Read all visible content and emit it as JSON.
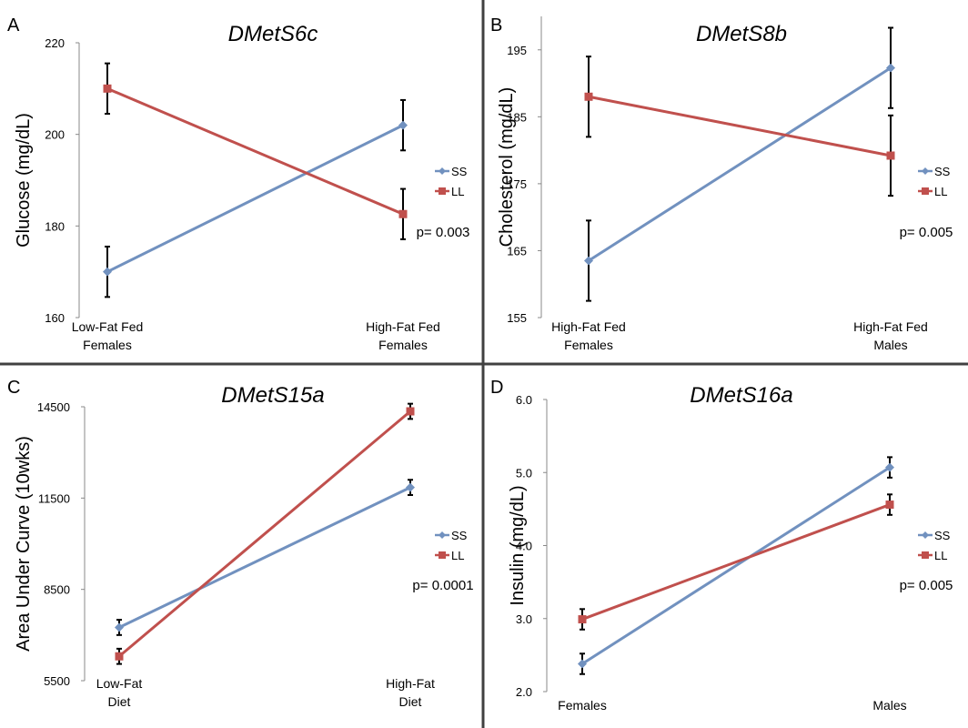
{
  "chart_data": [
    {
      "type": "line",
      "panel": "A",
      "title": "DMetS6c",
      "xlabel": "",
      "ylabel": "Glucose (mg/dL)",
      "ylim": [
        160,
        220
      ],
      "yticks": [
        "160",
        "180",
        "200",
        "220"
      ],
      "categories": [
        [
          "Low-Fat Fed",
          "Females"
        ],
        [
          "High-Fat Fed",
          "Females"
        ]
      ],
      "series": [
        {
          "name": "SS",
          "color": "#7191bf",
          "marker": "diamond",
          "values": [
            170,
            202
          ],
          "errors": [
            5.5,
            5.5
          ]
        },
        {
          "name": "LL",
          "color": "#c0504d",
          "marker": "square",
          "values": [
            210,
            182.6
          ],
          "errors": [
            5.5,
            5.5
          ]
        }
      ],
      "annotation": "p= 0.003",
      "legend": "right"
    },
    {
      "type": "line",
      "panel": "B",
      "title": "DMetS8b",
      "xlabel": "",
      "ylabel": "Cholesterol (mg/dL)",
      "ylim": [
        155,
        200
      ],
      "yticks": [
        "155",
        "165",
        "175",
        "185",
        "195"
      ],
      "categories": [
        [
          "High-Fat Fed",
          "Females"
        ],
        [
          "High-Fat Fed",
          "Males"
        ]
      ],
      "series": [
        {
          "name": "SS",
          "color": "#7191bf",
          "marker": "diamond",
          "values": [
            163.5,
            192.3
          ],
          "errors": [
            6,
            6
          ]
        },
        {
          "name": "LL",
          "color": "#c0504d",
          "marker": "square",
          "values": [
            188,
            179.2
          ],
          "errors": [
            6,
            6
          ]
        }
      ],
      "annotation": "p= 0.005",
      "legend": "right"
    },
    {
      "type": "line",
      "panel": "C",
      "title": "DMetS15a",
      "xlabel": "",
      "ylabel": "Area Under Curve (10wks)",
      "ylim": [
        5500,
        14500
      ],
      "yticks": [
        "5500",
        "8500",
        "11500",
        "14500"
      ],
      "categories": [
        [
          "Low-Fat",
          "Diet"
        ],
        [
          "High-Fat",
          "Diet"
        ]
      ],
      "series": [
        {
          "name": "SS",
          "color": "#7191bf",
          "marker": "diamond",
          "values": [
            7250,
            11850
          ],
          "errors": [
            250,
            250
          ]
        },
        {
          "name": "LL",
          "color": "#c0504d",
          "marker": "square",
          "values": [
            6300,
            14350
          ],
          "errors": [
            250,
            250
          ]
        }
      ],
      "annotation": "p= 0.0001",
      "legend": "right"
    },
    {
      "type": "line",
      "panel": "D",
      "title": "DMetS16a",
      "xlabel": "",
      "ylabel": "Insulin (mg/dL)",
      "ylim": [
        2.0,
        6.0
      ],
      "yticks": [
        "2.0",
        "3.0",
        "4.0",
        "5.0",
        "6.0"
      ],
      "categories": [
        [
          "Females"
        ],
        [
          "Males"
        ]
      ],
      "series": [
        {
          "name": "SS",
          "color": "#7191bf",
          "marker": "diamond",
          "values": [
            2.38,
            5.07
          ],
          "errors": [
            0.14,
            0.14
          ]
        },
        {
          "name": "LL",
          "color": "#c0504d",
          "marker": "square",
          "values": [
            2.99,
            4.56
          ],
          "errors": [
            0.14,
            0.14
          ]
        }
      ],
      "annotation": "p= 0.005",
      "legend": "right"
    }
  ]
}
